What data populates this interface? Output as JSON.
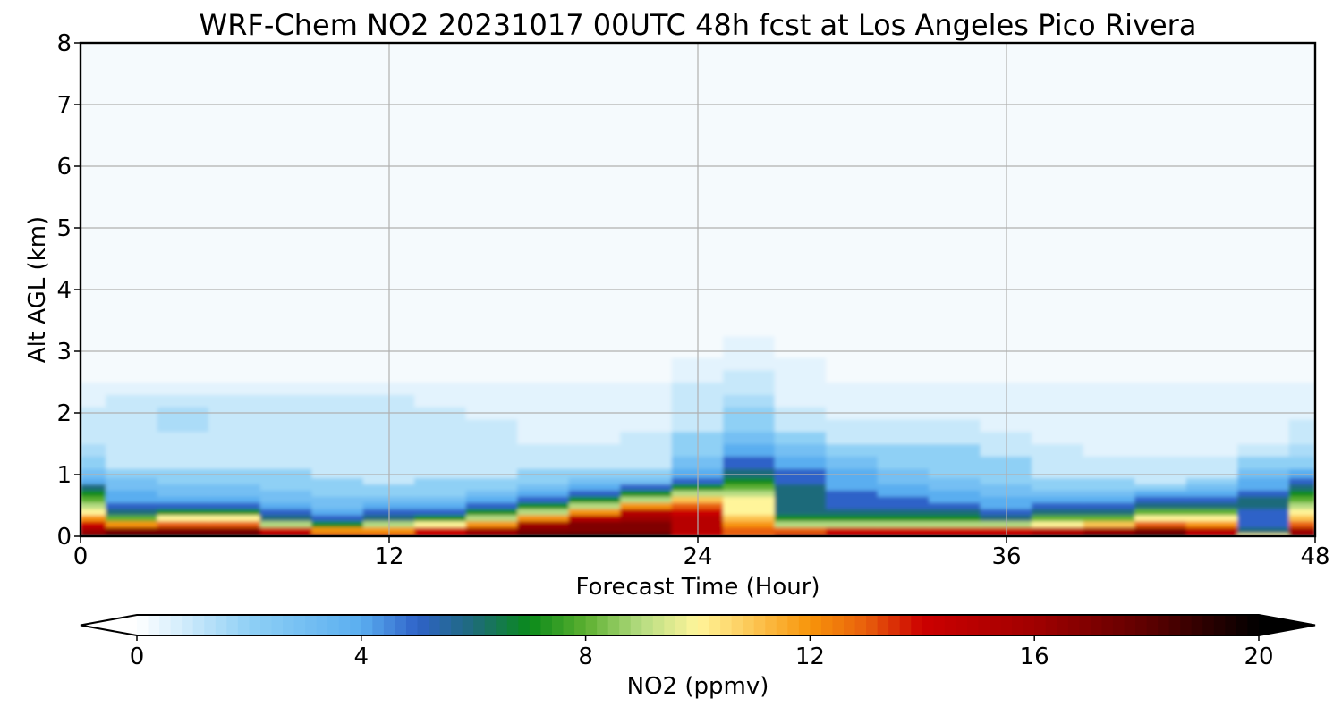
{
  "chart_data": {
    "type": "heatmap",
    "title": "WRF-Chem NO2  20231017 00UTC 48h fcst at Los Angeles Pico Rivera",
    "xlabel": "Forecast Time (Hour)",
    "ylabel": "Alt AGL (km)",
    "xlim": [
      0,
      48
    ],
    "ylim": [
      0,
      8
    ],
    "xticks": [
      0,
      12,
      24,
      36,
      48
    ],
    "yticks": [
      0,
      1,
      2,
      3,
      4,
      5,
      6,
      7,
      8
    ],
    "grid": true,
    "x": [
      0,
      2,
      4,
      6,
      8,
      10,
      12,
      14,
      16,
      18,
      20,
      22,
      24,
      26,
      28,
      30,
      32,
      34,
      36,
      38,
      40,
      42,
      44,
      46,
      48
    ],
    "y": [
      0,
      0.1,
      0.2,
      0.3,
      0.4,
      0.5,
      0.6,
      0.7,
      0.8,
      0.9,
      1.0,
      1.2,
      1.4,
      1.6,
      1.8,
      2.0,
      2.2,
      2.4,
      2.6,
      2.8,
      3.0,
      3.5,
      4,
      5,
      6,
      7,
      8
    ],
    "values_note_units": "ppmv",
    "values": [
      [
        18,
        20,
        20,
        19,
        17,
        15,
        14,
        15,
        17,
        19,
        20,
        19,
        14,
        13,
        15,
        16,
        16,
        16,
        16,
        17,
        19,
        20,
        15,
        10,
        17
      ],
      [
        16,
        17,
        17,
        17,
        14,
        12,
        12,
        14,
        16,
        17,
        17,
        17,
        15,
        13,
        13,
        14,
        14,
        14,
        14,
        15,
        16,
        17,
        15,
        6,
        16
      ],
      [
        14,
        12,
        13,
        13,
        9,
        7,
        9,
        10,
        12,
        16,
        17,
        17,
        15,
        12,
        9,
        9,
        9,
        9,
        9,
        10,
        11,
        13,
        12,
        5,
        13
      ],
      [
        12,
        8,
        10,
        10,
        6,
        5,
        6,
        7,
        9,
        12,
        15,
        16,
        15,
        11,
        7,
        7,
        7,
        7,
        6,
        8,
        8,
        10,
        10,
        5,
        11
      ],
      [
        10,
        6,
        7,
        7,
        5,
        4,
        5,
        5,
        7,
        9,
        12,
        15,
        14,
        10,
        6,
        6,
        6,
        6,
        5,
        6,
        6,
        8,
        8,
        5,
        10
      ],
      [
        9,
        5,
        5,
        5,
        4,
        3,
        4,
        4,
        5,
        7,
        9,
        12,
        13,
        10,
        6,
        5,
        5,
        5,
        4,
        5,
        5,
        6,
        6,
        6,
        9
      ],
      [
        8,
        4,
        4,
        4,
        3,
        3,
        3,
        3,
        4,
        5,
        7,
        9,
        11,
        10,
        6,
        5,
        5,
        4,
        4,
        4,
        4,
        5,
        5,
        6,
        8
      ],
      [
        7,
        4,
        3,
        3,
        3,
        2,
        2,
        2,
        3,
        4,
        5,
        7,
        9,
        9,
        6,
        5,
        4,
        4,
        3,
        3,
        3,
        4,
        4,
        5,
        7
      ],
      [
        6,
        3,
        3,
        3,
        2,
        2,
        2,
        2,
        2,
        3,
        4,
        5,
        7,
        8,
        6,
        4,
        4,
        3,
        3,
        2,
        2,
        2,
        3,
        4,
        6
      ],
      [
        4,
        3,
        2,
        2,
        2,
        2,
        1,
        2,
        2,
        2,
        3,
        3,
        5,
        7,
        5,
        4,
        3,
        3,
        2,
        2,
        2,
        1,
        2,
        4,
        5
      ],
      [
        3,
        2,
        2,
        2,
        2,
        1,
        1,
        1,
        1,
        2,
        2,
        2,
        4,
        6,
        5,
        4,
        3,
        2,
        2,
        1,
        1,
        1,
        1,
        3,
        4
      ],
      [
        2,
        1,
        1,
        1,
        1,
        1,
        1,
        1,
        1,
        1,
        1,
        1,
        3,
        5,
        4,
        3,
        2,
        2,
        2,
        1,
        1,
        1,
        1,
        2,
        2
      ],
      [
        1.5,
        1,
        1,
        1,
        1,
        1,
        1,
        1,
        1,
        1,
        1,
        1,
        2,
        4,
        3,
        2,
        2,
        2,
        1,
        1,
        0.5,
        0.5,
        0.5,
        1,
        1.5
      ],
      [
        1,
        1,
        1,
        1,
        1,
        1,
        1,
        1,
        1,
        0.5,
        0.5,
        1,
        2,
        3,
        2,
        1,
        1,
        1,
        1,
        0.5,
        0.5,
        0.5,
        0.5,
        0.5,
        1
      ],
      [
        1,
        1,
        1.5,
        1,
        1,
        1,
        1,
        1,
        1,
        0.5,
        0.5,
        0.5,
        1,
        2,
        1,
        1,
        1,
        1,
        0.5,
        0.5,
        0.5,
        0.5,
        0.5,
        0.5,
        1
      ],
      [
        1,
        1,
        1.5,
        1,
        1,
        1,
        1,
        1,
        0.5,
        0.5,
        0.5,
        0.5,
        1,
        2,
        1,
        0.5,
        0.5,
        0.5,
        0.5,
        0.5,
        0.5,
        0.5,
        0.5,
        0.5,
        0.5
      ],
      [
        0.5,
        1,
        1,
        1,
        1,
        1,
        1,
        0.5,
        0.5,
        0.5,
        0.5,
        0.5,
        1,
        1.5,
        0.5,
        0.5,
        0.5,
        0.5,
        0.5,
        0.5,
        0.5,
        0.5,
        0.5,
        0.5,
        0.5
      ],
      [
        0.5,
        0.5,
        0.5,
        0.5,
        0.5,
        0.5,
        0.5,
        0.5,
        0.5,
        0.5,
        0.5,
        0.5,
        1,
        1,
        0.5,
        0.5,
        0.5,
        0.5,
        0.5,
        0.5,
        0.5,
        0.5,
        0.5,
        0.5,
        0.5
      ],
      [
        0,
        0,
        0,
        0,
        0,
        0,
        0,
        0,
        0,
        0,
        0,
        0,
        0.5,
        1,
        0.5,
        0,
        0,
        0,
        0,
        0,
        0,
        0,
        0,
        0,
        0
      ],
      [
        0,
        0,
        0,
        0,
        0,
        0,
        0,
        0,
        0,
        0,
        0,
        0,
        0.5,
        0.5,
        0.5,
        0,
        0,
        0,
        0,
        0,
        0,
        0,
        0,
        0,
        0
      ],
      [
        0,
        0,
        0,
        0,
        0,
        0,
        0,
        0,
        0,
        0,
        0,
        0,
        0,
        0.5,
        0,
        0,
        0,
        0,
        0,
        0,
        0,
        0,
        0,
        0,
        0
      ],
      [
        0,
        0,
        0,
        0,
        0,
        0,
        0,
        0,
        0,
        0,
        0,
        0,
        0,
        0,
        0,
        0,
        0,
        0,
        0,
        0,
        0,
        0,
        0,
        0,
        0
      ],
      [
        0,
        0,
        0,
        0,
        0,
        0,
        0,
        0,
        0,
        0,
        0,
        0,
        0,
        0,
        0,
        0,
        0,
        0,
        0,
        0,
        0,
        0,
        0,
        0,
        0
      ],
      [
        0,
        0,
        0,
        0,
        0,
        0,
        0,
        0,
        0,
        0,
        0,
        0,
        0,
        0,
        0,
        0,
        0,
        0,
        0,
        0,
        0,
        0,
        0,
        0,
        0
      ],
      [
        0,
        0,
        0,
        0,
        0,
        0,
        0,
        0,
        0,
        0,
        0,
        0,
        0,
        0,
        0,
        0,
        0,
        0,
        0,
        0,
        0,
        0,
        0,
        0,
        0
      ],
      [
        0,
        0,
        0,
        0,
        0,
        0,
        0,
        0,
        0,
        0,
        0,
        0,
        0,
        0,
        0,
        0,
        0,
        0,
        0,
        0,
        0,
        0,
        0,
        0,
        0
      ],
      [
        0,
        0,
        0,
        0,
        0,
        0,
        0,
        0,
        0,
        0,
        0,
        0,
        0,
        0,
        0,
        0,
        0,
        0,
        0,
        0,
        0,
        0,
        0,
        0,
        0
      ]
    ],
    "colorbar": {
      "label": "NO2  (ppmv)",
      "min": 0,
      "max": 20,
      "ticks": [
        0,
        4,
        8,
        12,
        16,
        20
      ],
      "extend": "both",
      "color_stops": [
        {
          "value": 0,
          "color": "#ffffff"
        },
        {
          "value": 2,
          "color": "#8fd0f5"
        },
        {
          "value": 4,
          "color": "#5aaef0"
        },
        {
          "value": 5,
          "color": "#2f62c8"
        },
        {
          "value": 6,
          "color": "#1e6b7a"
        },
        {
          "value": 7,
          "color": "#0a8a1a"
        },
        {
          "value": 8,
          "color": "#5cb030"
        },
        {
          "value": 9,
          "color": "#b6dc82"
        },
        {
          "value": 10,
          "color": "#fff59a"
        },
        {
          "value": 11,
          "color": "#fcc552"
        },
        {
          "value": 12,
          "color": "#f7940a"
        },
        {
          "value": 13,
          "color": "#e85f0c"
        },
        {
          "value": 14,
          "color": "#cc0000"
        },
        {
          "value": 16,
          "color": "#a10000"
        },
        {
          "value": 18,
          "color": "#5e0000"
        },
        {
          "value": 20,
          "color": "#000000"
        }
      ]
    }
  }
}
